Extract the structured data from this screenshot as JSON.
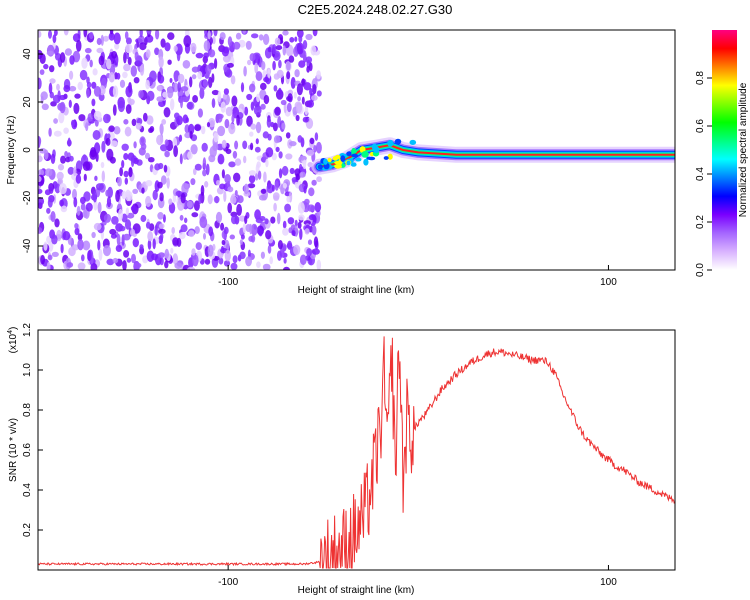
{
  "title": "C2E5.2024.248.02.27.G30",
  "chart_data": [
    {
      "type": "heatmap",
      "title": "C2E5.2024.248.02.27.G30",
      "xlabel": "Height of straight line (km)",
      "ylabel": "Frequency (Hz)",
      "xlim": [
        -200,
        135
      ],
      "ylim": [
        -50,
        50
      ],
      "x_ticks": [
        -100,
        100
      ],
      "x_tick_labels": [
        "-100",
        "100"
      ],
      "y_ticks": [
        -40,
        -20,
        0,
        20,
        40
      ],
      "y_tick_labels": [
        "-40",
        "-20",
        "0",
        "20",
        "40"
      ],
      "noise_region_x": [
        -200,
        -52
      ],
      "signal_trace": [
        {
          "x": -52,
          "y": -7
        },
        {
          "x": -45,
          "y": -6
        },
        {
          "x": -38,
          "y": -4
        },
        {
          "x": -30,
          "y": 0
        },
        {
          "x": -22,
          "y": 1
        },
        {
          "x": -15,
          "y": 2
        },
        {
          "x": -8,
          "y": 0
        },
        {
          "x": 0,
          "y": -1
        },
        {
          "x": 20,
          "y": -2
        },
        {
          "x": 40,
          "y": -2
        },
        {
          "x": 60,
          "y": -2
        },
        {
          "x": 80,
          "y": -2
        },
        {
          "x": 100,
          "y": -2
        },
        {
          "x": 120,
          "y": -2
        },
        {
          "x": 135,
          "y": -2
        }
      ],
      "colorbar": {
        "label": "Normalized spectral amplitude",
        "range": [
          0,
          1
        ],
        "ticks": [
          "0.0",
          "0.2",
          "0.4",
          "0.6",
          "0.8"
        ],
        "colors": [
          "#ffffff",
          "#d9b3ff",
          "#a566ff",
          "#7a00ff",
          "#0000ff",
          "#0080ff",
          "#00ffff",
          "#00ff80",
          "#00ff00",
          "#80ff00",
          "#ffff00",
          "#ff8000",
          "#ff0000",
          "#ff0080"
        ]
      }
    },
    {
      "type": "line",
      "xlabel": "Height of straight line (km)",
      "ylabel": "SNR (10 * v/v)",
      "y_multiplier": "(x10",
      "y_multiplier_exp": "4",
      "y_multiplier_close": ")",
      "xlim": [
        -200,
        135
      ],
      "ylim": [
        0,
        1.2
      ],
      "x_ticks": [
        -100,
        100
      ],
      "x_tick_labels": [
        "-100",
        "100"
      ],
      "y_ticks": [
        0.2,
        0.4,
        0.6,
        0.8,
        1.0,
        1.2
      ],
      "y_tick_labels": [
        "0.2",
        "0.4",
        "0.6",
        "0.8",
        "1.0",
        "1.2"
      ],
      "line_color": "#ee3333",
      "series": [
        {
          "x": [
            -200,
            -180,
            -160,
            -140,
            -120,
            -100,
            -80,
            -60,
            -52,
            -46,
            -40,
            -36,
            -32,
            -28,
            -24,
            -20,
            -18,
            -16,
            -14,
            -12,
            -10,
            -8,
            -6,
            -4,
            -2,
            0,
            4,
            8,
            12,
            16,
            20,
            24,
            28,
            32,
            36,
            40,
            44,
            48,
            52,
            56,
            60,
            64,
            68,
            72,
            76,
            80,
            84,
            88,
            92,
            96,
            100,
            104,
            108,
            112,
            116,
            120,
            124,
            128,
            132,
            135
          ],
          "values": [
            0.03,
            0.03,
            0.03,
            0.03,
            0.03,
            0.03,
            0.03,
            0.03,
            0.04,
            0.07,
            0.1,
            0.15,
            0.2,
            0.28,
            0.45,
            0.7,
            0.95,
            0.6,
            1.1,
            0.5,
            1.15,
            0.45,
            0.75,
            0.68,
            0.7,
            0.74,
            0.78,
            0.84,
            0.9,
            0.94,
            0.98,
            1.01,
            1.04,
            1.06,
            1.08,
            1.09,
            1.09,
            1.08,
            1.07,
            1.06,
            1.05,
            1.05,
            1.04,
            0.98,
            0.88,
            0.8,
            0.72,
            0.66,
            0.62,
            0.58,
            0.55,
            0.52,
            0.5,
            0.47,
            0.44,
            0.42,
            0.4,
            0.38,
            0.36,
            0.35
          ]
        }
      ]
    }
  ]
}
